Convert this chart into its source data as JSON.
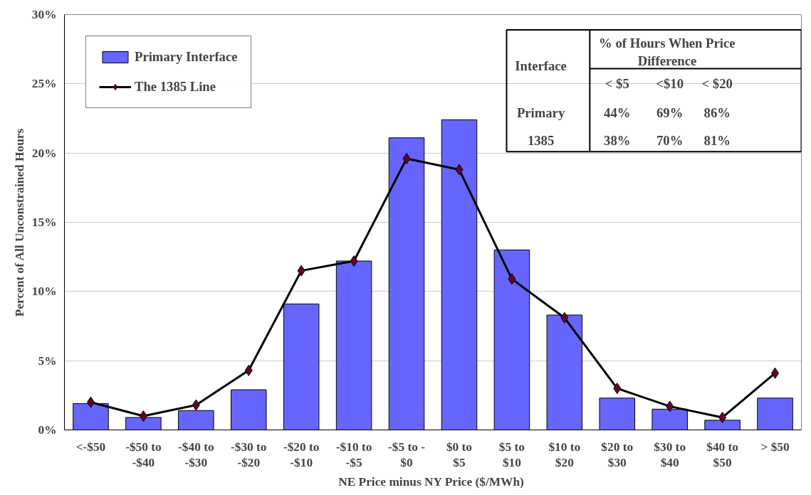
{
  "chart_data": {
    "type": "bar",
    "xlabel": "NE Price minus NY  Price ($/MWh)",
    "ylabel": "Percent of All Unconstrained Hours",
    "categories": [
      "<-$50",
      "-$50 to\n-$40",
      "-$40 to\n-$30",
      "-$30 to\n-$20",
      "-$20 to\n-$10",
      "-$10 to\n-$5",
      "-$5 to -\n$0",
      "$0 to\n$5",
      "$5 to\n$10",
      "$10 to\n$20",
      "$20 to\n$30",
      "$30 to\n$40",
      "$40 to\n$50",
      "> $50"
    ],
    "series": [
      {
        "name": "Primary Interface",
        "color": "#6666ff",
        "values": [
          1.9,
          0.9,
          1.4,
          2.9,
          9.1,
          12.2,
          21.1,
          22.4,
          13.0,
          8.3,
          2.3,
          1.5,
          0.7,
          2.3
        ]
      },
      {
        "name": "The 1385 Line",
        "type": "line",
        "color": "#000000",
        "colors": [
          "#660033",
          "#660033",
          "#660033",
          "#660033",
          "#660033",
          "#660033",
          "#660033",
          "#660033",
          "#660033",
          "#660033",
          "#660033",
          "#660033",
          "#660033",
          "#660033"
        ],
        "marker": "diamond",
        "values": [
          2.0,
          1.0,
          1.8,
          4.3,
          11.5,
          12.2,
          19.6,
          18.8,
          10.9,
          8.1,
          3.0,
          1.7,
          0.9,
          4.1
        ]
      }
    ],
    "ylim": [
      0,
      30
    ],
    "yticks": [
      {
        "value": 0,
        "label": "0%"
      },
      {
        "value": 5,
        "label": "5%"
      },
      {
        "value": 10,
        "label": "10%"
      },
      {
        "value": 15,
        "label": "15%"
      },
      {
        "value": 20,
        "label": "20%"
      },
      {
        "value": 25,
        "label": "25%"
      },
      {
        "value": 30,
        "label": "30%"
      }
    ],
    "grid": "y",
    "legend": "top left",
    "annotations": [
      "Interface",
      "% of Hours When Price\nDifference",
      "< $5",
      "<$10",
      "< $20",
      "Primary",
      "44%",
      "69%",
      "86%",
      "1385",
      "38%",
      "70%",
      "81%"
    ]
  }
}
